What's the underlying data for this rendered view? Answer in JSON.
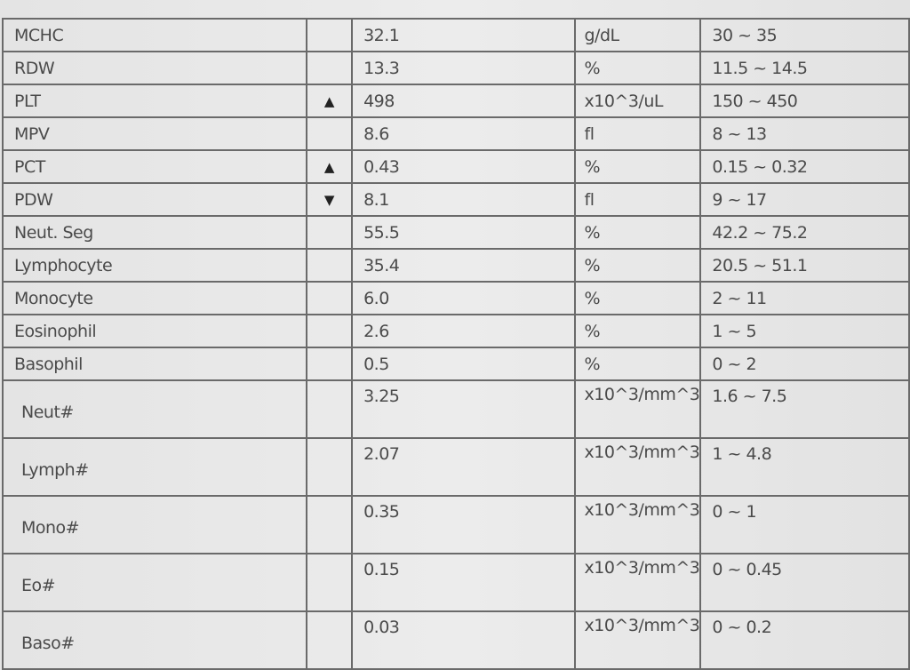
{
  "rows": [
    {
      "name": "MCHC",
      "flag": "",
      "value": "32.1",
      "unit": "g/dL",
      "range": "30 ~ 35"
    },
    {
      "name": "RDW",
      "flag": "",
      "value": "13.3",
      "unit": "%",
      "range": "11.5 ~ 14.5"
    },
    {
      "name": "PLT",
      "flag": "▲",
      "value": "498",
      "unit": "x10^3/uL",
      "range": "150 ~ 450"
    },
    {
      "name": "MPV",
      "flag": "",
      "value": "8.6",
      "unit": "fl",
      "range": "8 ~ 13"
    },
    {
      "name": "PCT",
      "flag": "▲",
      "value": "0.43",
      "unit": "%",
      "range": "0.15 ~ 0.32"
    },
    {
      "name": "PDW",
      "flag": "▼",
      "value": "8.1",
      "unit": "fl",
      "range": "9 ~ 17"
    },
    {
      "name": "Neut. Seg",
      "flag": "",
      "value": "55.5",
      "unit": "%",
      "range": "42.2 ~ 75.2"
    },
    {
      "name": "Lymphocyte",
      "flag": "",
      "value": "35.4",
      "unit": "%",
      "range": "20.5 ~ 51.1"
    },
    {
      "name": "Monocyte",
      "flag": "",
      "value": "6.0",
      "unit": "%",
      "range": "2 ~ 11"
    },
    {
      "name": "Eosinophil",
      "flag": "",
      "value": "2.6",
      "unit": "%",
      "range": "1 ~ 5"
    },
    {
      "name": "Basophil",
      "flag": "",
      "value": "0.5",
      "unit": "%",
      "range": "0 ~ 2"
    },
    {
      "name": "Neut#",
      "flag": "",
      "value": "3.25",
      "unit": "x10^3/mm^3",
      "range": "1.6 ~ 7.5"
    },
    {
      "name": "Lymph#",
      "flag": "",
      "value": "2.07",
      "unit": "x10^3/mm^3",
      "range": "1 ~ 4.8"
    },
    {
      "name": "Mono#",
      "flag": "",
      "value": "0.35",
      "unit": "x10^3/mm^3",
      "range": "0 ~ 1"
    },
    {
      "name": "Eo#",
      "flag": "",
      "value": "0.15",
      "unit": "x10^3/mm^3",
      "range": "0 ~ 0.45"
    },
    {
      "name": "Baso#",
      "flag": "",
      "value": "0.03",
      "unit": "x10^3/mm^3",
      "range": "0 ~ 0.2"
    }
  ],
  "flag_icons": {
    "▲": "arrow-up-icon",
    "▼": "arrow-down-icon"
  }
}
